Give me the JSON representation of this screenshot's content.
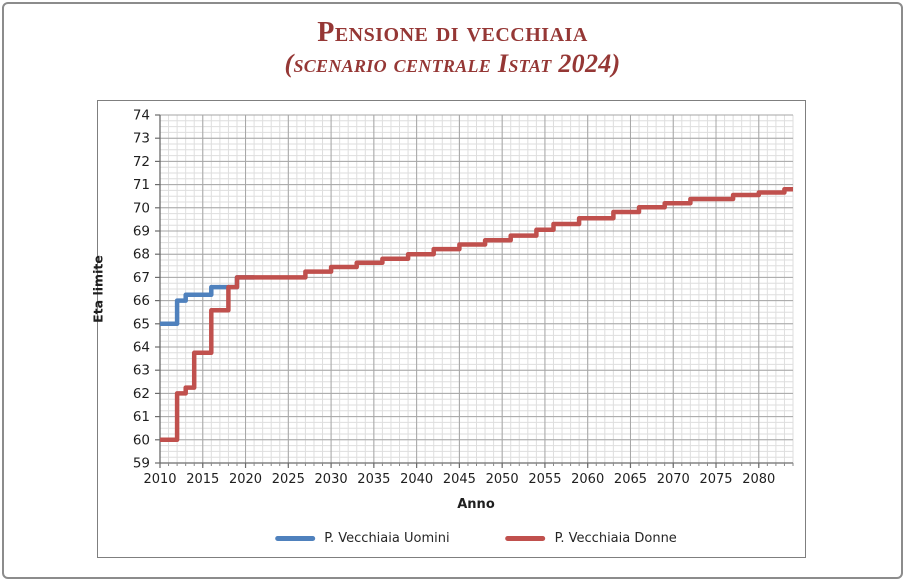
{
  "page": {
    "title_line1": "Pensione di vecchiaia",
    "title_line2_text": "(scenario centrale Istat ",
    "title_line2_year": "2024)"
  },
  "chart_data": {
    "type": "line",
    "step": true,
    "title": "Pensione di vecchiaia (scenario centrale Istat 2024)",
    "xlabel": "Anno",
    "ylabel": "Eta limite",
    "xlim": [
      2010,
      2084
    ],
    "ylim": [
      59,
      74
    ],
    "grid": "major+minor",
    "x_minor_step": 1,
    "x_major_step": 5,
    "y_minor_step": 0.25,
    "y_major_step": 1,
    "x_tick_labels": [
      2010,
      2015,
      2020,
      2025,
      2030,
      2035,
      2040,
      2045,
      2050,
      2055,
      2060,
      2065,
      2070,
      2075,
      2080
    ],
    "y_tick_labels": [
      59,
      60,
      61,
      62,
      63,
      64,
      65,
      66,
      67,
      68,
      69,
      70,
      71,
      72,
      73,
      74
    ],
    "legend_position": "bottom",
    "series": [
      {
        "name": "P. Vecchiaia Uomini",
        "color": "#4f81bd",
        "end_x": 2021,
        "points": [
          [
            2010,
            65
          ],
          [
            2012,
            66
          ],
          [
            2013,
            66.25
          ],
          [
            2016,
            66.583
          ],
          [
            2019,
            67
          ]
        ]
      },
      {
        "name": "P. Vecchiaia Donne",
        "color": "#c0504d",
        "end_x": 2084,
        "points": [
          [
            2010,
            60
          ],
          [
            2012,
            62
          ],
          [
            2013,
            62.25
          ],
          [
            2014,
            63.75
          ],
          [
            2016,
            65.583
          ],
          [
            2018,
            66.583
          ],
          [
            2019,
            67
          ],
          [
            2027,
            67.25
          ],
          [
            2030,
            67.45
          ],
          [
            2033,
            67.63
          ],
          [
            2036,
            67.8
          ],
          [
            2039,
            68.0
          ],
          [
            2042,
            68.22
          ],
          [
            2045,
            68.42
          ],
          [
            2048,
            68.6
          ],
          [
            2051,
            68.8
          ],
          [
            2054,
            69.05
          ],
          [
            2056,
            69.3
          ],
          [
            2059,
            69.55
          ],
          [
            2063,
            69.82
          ],
          [
            2066,
            70.02
          ],
          [
            2069,
            70.2
          ],
          [
            2072,
            70.38
          ],
          [
            2077,
            70.55
          ],
          [
            2080,
            70.66
          ],
          [
            2083,
            70.8
          ]
        ]
      }
    ]
  }
}
